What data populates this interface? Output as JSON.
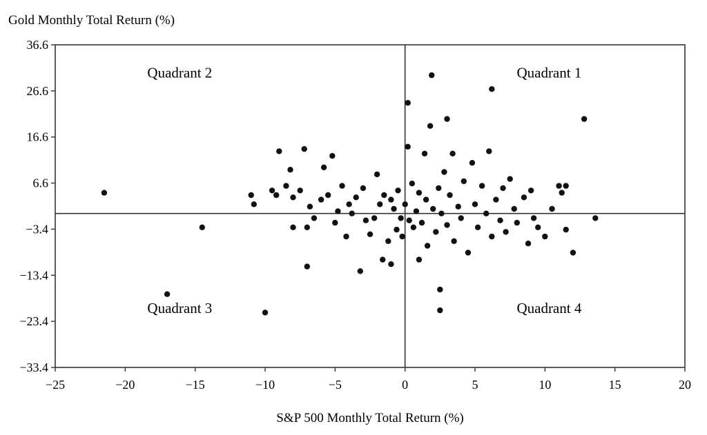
{
  "chart_data": {
    "type": "scatter",
    "title": "",
    "ylabel": "Gold Monthly Total Return (%)",
    "xlabel": "S&P 500 Monthly Total Return (%)",
    "xlim": [
      -25,
      20
    ],
    "ylim": [
      -33.4,
      36.6
    ],
    "xticks": [
      -25,
      -20,
      -15,
      -10,
      -5,
      0,
      5,
      10,
      15,
      20
    ],
    "xtick_labels": [
      "−25",
      "−20",
      "−15",
      "−10",
      "−5",
      "0",
      "5",
      "10",
      "15",
      "20"
    ],
    "yticks": [
      36.6,
      26.6,
      16.6,
      6.6,
      -3.4,
      -13.4,
      -23.4,
      -33.4
    ],
    "ytick_labels": [
      "36.6",
      "26.6",
      "16.6",
      "6.6",
      "−3.4",
      "−13.4",
      "−23.4",
      "−33.4"
    ],
    "reference_lines": {
      "x": 0,
      "y": 0
    },
    "grid": false,
    "annotations": [
      {
        "text": "Quadrant 1",
        "quadrant": "top-right"
      },
      {
        "text": "Quadrant 2",
        "quadrant": "top-left"
      },
      {
        "text": "Quadrant 3",
        "quadrant": "bottom-left"
      },
      {
        "text": "Quadrant 4",
        "quadrant": "bottom-right"
      }
    ],
    "series": [
      {
        "marker_color": "#111111",
        "points": [
          [
            -21.5,
            4.5
          ],
          [
            -17.0,
            -17.5
          ],
          [
            -14.5,
            -3.0
          ],
          [
            -10.0,
            -21.5
          ],
          [
            -11.0,
            4.0
          ],
          [
            -10.8,
            2.0
          ],
          [
            -9.5,
            5.0
          ],
          [
            -9.2,
            4.0
          ],
          [
            -9.0,
            13.5
          ],
          [
            -8.5,
            6.0
          ],
          [
            -8.2,
            9.5
          ],
          [
            -8.0,
            3.5
          ],
          [
            -8.0,
            -3.0
          ],
          [
            -7.5,
            5.0
          ],
          [
            -7.2,
            14.0
          ],
          [
            -7.0,
            -3.0
          ],
          [
            -7.0,
            -11.5
          ],
          [
            -6.8,
            1.5
          ],
          [
            -6.5,
            -1.0
          ],
          [
            -6.0,
            3.0
          ],
          [
            -5.8,
            10.0
          ],
          [
            -5.5,
            4.0
          ],
          [
            -5.2,
            12.5
          ],
          [
            -5.0,
            -2.0
          ],
          [
            -4.8,
            0.5
          ],
          [
            -4.5,
            6.0
          ],
          [
            -4.2,
            -5.0
          ],
          [
            -4.0,
            2.0
          ],
          [
            -3.8,
            0.0
          ],
          [
            -3.5,
            3.5
          ],
          [
            -3.2,
            -12.5
          ],
          [
            -3.0,
            5.5
          ],
          [
            -2.8,
            -1.5
          ],
          [
            -2.5,
            -4.5
          ],
          [
            -2.2,
            -1.0
          ],
          [
            -2.0,
            8.5
          ],
          [
            -1.8,
            2.0
          ],
          [
            -1.6,
            -10.0
          ],
          [
            -1.5,
            4.0
          ],
          [
            -1.2,
            -6.0
          ],
          [
            -1.0,
            3.0
          ],
          [
            -1.0,
            -11.0
          ],
          [
            -0.8,
            1.0
          ],
          [
            -0.6,
            -3.5
          ],
          [
            -0.5,
            5.0
          ],
          [
            -0.3,
            -1.0
          ],
          [
            -0.2,
            -5.0
          ],
          [
            0.0,
            2.0
          ],
          [
            0.2,
            24.0
          ],
          [
            0.2,
            14.5
          ],
          [
            0.3,
            -1.5
          ],
          [
            0.5,
            6.5
          ],
          [
            0.6,
            -3.0
          ],
          [
            0.8,
            0.5
          ],
          [
            1.0,
            4.5
          ],
          [
            1.0,
            -10.0
          ],
          [
            1.2,
            -2.0
          ],
          [
            1.4,
            13.0
          ],
          [
            1.5,
            3.0
          ],
          [
            1.6,
            -7.0
          ],
          [
            1.8,
            19.0
          ],
          [
            1.9,
            30.0
          ],
          [
            2.0,
            1.0
          ],
          [
            2.2,
            -4.0
          ],
          [
            2.4,
            5.5
          ],
          [
            2.5,
            -16.5
          ],
          [
            2.5,
            -21.0
          ],
          [
            2.6,
            0.0
          ],
          [
            2.8,
            9.0
          ],
          [
            3.0,
            20.5
          ],
          [
            3.0,
            -2.5
          ],
          [
            3.2,
            4.0
          ],
          [
            3.4,
            13.0
          ],
          [
            3.5,
            -6.0
          ],
          [
            3.8,
            1.5
          ],
          [
            4.0,
            -1.0
          ],
          [
            4.2,
            7.0
          ],
          [
            4.5,
            -8.5
          ],
          [
            4.8,
            11.0
          ],
          [
            5.0,
            2.0
          ],
          [
            5.2,
            -3.0
          ],
          [
            5.5,
            6.0
          ],
          [
            5.8,
            0.0
          ],
          [
            6.0,
            13.5
          ],
          [
            6.2,
            27.0
          ],
          [
            6.2,
            -5.0
          ],
          [
            6.5,
            3.0
          ],
          [
            6.8,
            -1.5
          ],
          [
            7.0,
            5.5
          ],
          [
            7.2,
            -4.0
          ],
          [
            7.5,
            7.5
          ],
          [
            7.8,
            1.0
          ],
          [
            8.0,
            -2.0
          ],
          [
            8.5,
            3.5
          ],
          [
            8.8,
            -6.5
          ],
          [
            9.0,
            5.0
          ],
          [
            9.2,
            -1.0
          ],
          [
            9.5,
            -3.0
          ],
          [
            10.0,
            -5.0
          ],
          [
            10.5,
            1.0
          ],
          [
            11.0,
            6.0
          ],
          [
            11.2,
            4.5
          ],
          [
            11.5,
            6.0
          ],
          [
            11.5,
            -3.5
          ],
          [
            12.0,
            -8.5
          ],
          [
            12.8,
            20.5
          ],
          [
            13.6,
            -1.0
          ]
        ]
      }
    ]
  }
}
